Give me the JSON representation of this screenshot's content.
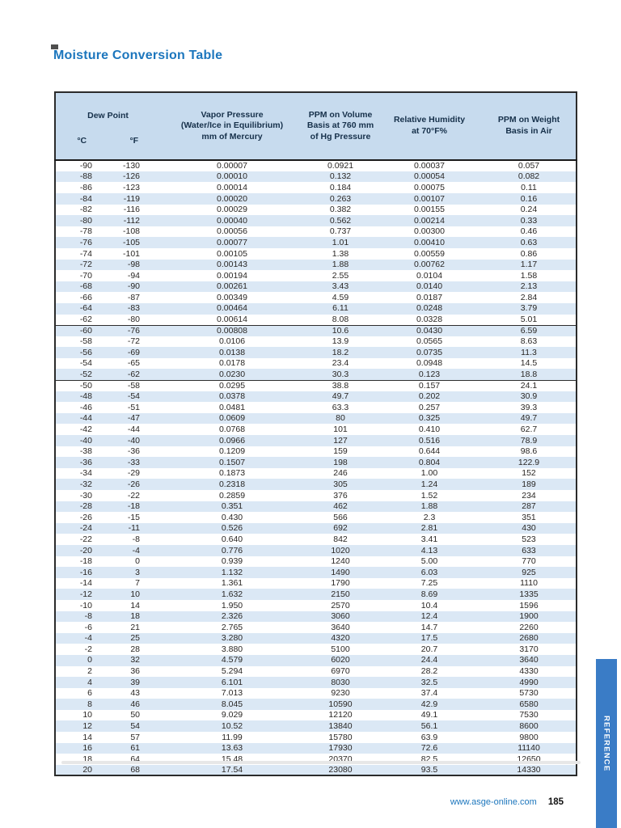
{
  "page": {
    "title": "Moisture Conversion Table",
    "side_tab_label": "REFERENCE",
    "footer": {
      "website": "www.asge-online.com",
      "page_number": "185"
    }
  },
  "colors": {
    "title_blue": "#1c76bd",
    "header_bg": "#c7dbee",
    "stripe_bg": "#dbe8f5",
    "tab_blue": "#3a7cc6",
    "link_blue": "#1c76bd",
    "header_text": "#16304a"
  },
  "table": {
    "headers": {
      "dew_point_group": "Dew Point",
      "unit_c": "°C",
      "unit_f": "°F",
      "vapor_pressure": "Vapor Pressure\n(Water/Ice in Equilibrium)\nmm of Mercury",
      "ppm_volume": "PPM on Volume\nBasis at 760 mm\nof Hg Pressure",
      "relative_humidity": "Relative Humidity\nat 70°F%",
      "ppm_weight": "PPM on Weight\nBasis in Air"
    },
    "divider_row_indices": [
      15,
      20
    ],
    "rows": [
      [
        "-90",
        "-130",
        "0.00007",
        "0.0921",
        "0.00037",
        "0.057"
      ],
      [
        "-88",
        "-126",
        "0.00010",
        "0.132",
        "0.00054",
        "0.082"
      ],
      [
        "-86",
        "-123",
        "0.00014",
        "0.184",
        "0.00075",
        "0.11"
      ],
      [
        "-84",
        "-119",
        "0.00020",
        "0.263",
        "0.00107",
        "0.16"
      ],
      [
        "-82",
        "-116",
        "0.00029",
        "0.382",
        "0.00155",
        "0.24"
      ],
      [
        "-80",
        "-112",
        "0.00040",
        "0.562",
        "0.00214",
        "0.33"
      ],
      [
        "-78",
        "-108",
        "0.00056",
        "0.737",
        "0.00300",
        "0.46"
      ],
      [
        "-76",
        "-105",
        "0.00077",
        "1.01",
        "0.00410",
        "0.63"
      ],
      [
        "-74",
        "-101",
        "0.00105",
        "1.38",
        "0.00559",
        "0.86"
      ],
      [
        "-72",
        "-98",
        "0.00143",
        "1.88",
        "0.00762",
        "1.17"
      ],
      [
        "-70",
        "-94",
        "0.00194",
        "2.55",
        "0.0104",
        "1.58"
      ],
      [
        "-68",
        "-90",
        "0.00261",
        "3.43",
        "0.0140",
        "2.13"
      ],
      [
        "-66",
        "-87",
        "0.00349",
        "4.59",
        "0.0187",
        "2.84"
      ],
      [
        "-64",
        "-83",
        "0.00464",
        "6.11",
        "0.0248",
        "3.79"
      ],
      [
        "-62",
        "-80",
        "0.00614",
        "8.08",
        "0.0328",
        "5.01"
      ],
      [
        "-60",
        "-76",
        "0.00808",
        "10.6",
        "0.0430",
        "6.59"
      ],
      [
        "-58",
        "-72",
        "0.0106",
        "13.9",
        "0.0565",
        "8.63"
      ],
      [
        "-56",
        "-69",
        "0.0138",
        "18.2",
        "0.0735",
        "11.3"
      ],
      [
        "-54",
        "-65",
        "0.0178",
        "23.4",
        "0.0948",
        "14.5"
      ],
      [
        "-52",
        "-62",
        "0.0230",
        "30.3",
        "0.123",
        "18.8"
      ],
      [
        "-50",
        "-58",
        "0.0295",
        "38.8",
        "0.157",
        "24.1"
      ],
      [
        "-48",
        "-54",
        "0.0378",
        "49.7",
        "0.202",
        "30.9"
      ],
      [
        "-46",
        "-51",
        "0.0481",
        "63.3",
        "0.257",
        "39.3"
      ],
      [
        "-44",
        "-47",
        "0.0609",
        "80",
        "0.325",
        "49.7"
      ],
      [
        "-42",
        "-44",
        "0.0768",
        "101",
        "0.410",
        "62.7"
      ],
      [
        "-40",
        "-40",
        "0.0966",
        "127",
        "0.516",
        "78.9"
      ],
      [
        "-38",
        "-36",
        "0.1209",
        "159",
        "0.644",
        "98.6"
      ],
      [
        "-36",
        "-33",
        "0.1507",
        "198",
        "0.804",
        "122.9"
      ],
      [
        "-34",
        "-29",
        "0.1873",
        "246",
        "1.00",
        "152"
      ],
      [
        "-32",
        "-26",
        "0.2318",
        "305",
        "1.24",
        "189"
      ],
      [
        "-30",
        "-22",
        "0.2859",
        "376",
        "1.52",
        "234"
      ],
      [
        "-28",
        "-18",
        "0.351",
        "462",
        "1.88",
        "287"
      ],
      [
        "-26",
        "-15",
        "0.430",
        "566",
        "2.3",
        "351"
      ],
      [
        "-24",
        "-11",
        "0.526",
        "692",
        "2.81",
        "430"
      ],
      [
        "-22",
        "-8",
        "0.640",
        "842",
        "3.41",
        "523"
      ],
      [
        "-20",
        "-4",
        "0.776",
        "1020",
        "4.13",
        "633"
      ],
      [
        "-18",
        "0",
        "0.939",
        "1240",
        "5.00",
        "770"
      ],
      [
        "-16",
        "3",
        "1.132",
        "1490",
        "6.03",
        "925"
      ],
      [
        "-14",
        "7",
        "1.361",
        "1790",
        "7.25",
        "1110"
      ],
      [
        "-12",
        "10",
        "1.632",
        "2150",
        "8.69",
        "1335"
      ],
      [
        "-10",
        "14",
        "1.950",
        "2570",
        "10.4",
        "1596"
      ],
      [
        "-8",
        "18",
        "2.326",
        "3060",
        "12.4",
        "1900"
      ],
      [
        "-6",
        "21",
        "2.765",
        "3640",
        "14.7",
        "2260"
      ],
      [
        "-4",
        "25",
        "3.280",
        "4320",
        "17.5",
        "2680"
      ],
      [
        "-2",
        "28",
        "3.880",
        "5100",
        "20.7",
        "3170"
      ],
      [
        "0",
        "32",
        "4.579",
        "6020",
        "24.4",
        "3640"
      ],
      [
        "2",
        "36",
        "5.294",
        "6970",
        "28.2",
        "4330"
      ],
      [
        "4",
        "39",
        "6.101",
        "8030",
        "32.5",
        "4990"
      ],
      [
        "6",
        "43",
        "7.013",
        "9230",
        "37.4",
        "5730"
      ],
      [
        "8",
        "46",
        "8.045",
        "10590",
        "42.9",
        "6580"
      ],
      [
        "10",
        "50",
        "9.029",
        "12120",
        "49.1",
        "7530"
      ],
      [
        "12",
        "54",
        "10.52",
        "13840",
        "56.1",
        "8600"
      ],
      [
        "14",
        "57",
        "11.99",
        "15780",
        "63.9",
        "9800"
      ],
      [
        "16",
        "61",
        "13.63",
        "17930",
        "72.6",
        "11140"
      ],
      [
        "18",
        "64",
        "15.48",
        "20370",
        "82.5",
        "12650"
      ],
      [
        "20",
        "68",
        "17.54",
        "23080",
        "93.5",
        "14330"
      ]
    ]
  }
}
